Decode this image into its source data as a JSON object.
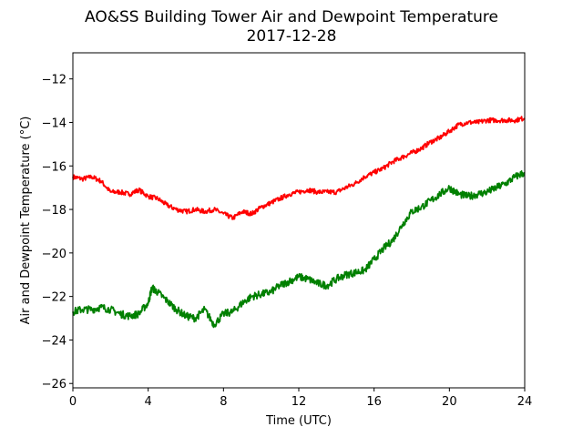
{
  "chart_data": {
    "type": "line",
    "title": "AO&SS Building Tower Air and Dewpoint Temperature",
    "subtitle": "2017-12-28",
    "xlabel": "Time (UTC)",
    "ylabel": "Air and Dewpoint Temperature (°C)",
    "xlim": [
      0,
      24
    ],
    "ylim": [
      -26.2,
      -10.8
    ],
    "xticks": [
      0,
      4,
      8,
      12,
      16,
      20,
      24
    ],
    "yticks": [
      -26,
      -24,
      -22,
      -20,
      -18,
      -16,
      -14,
      -12
    ],
    "grid": false,
    "series": [
      {
        "color": "#ff0000",
        "x": [
          0,
          0.5,
          1,
          1.5,
          2,
          2.5,
          3,
          3.5,
          4,
          4.5,
          5,
          5.5,
          6,
          6.5,
          7,
          7.5,
          8,
          8.5,
          9,
          9.5,
          10,
          10.5,
          11,
          11.5,
          12,
          12.5,
          13,
          13.5,
          14,
          14.5,
          15,
          15.5,
          16,
          16.5,
          17,
          17.5,
          18,
          18.5,
          19,
          19.5,
          20,
          20.5,
          21,
          21.5,
          22,
          22.5,
          23,
          23.5,
          24
        ],
        "y": [
          -16.5,
          -16.6,
          -16.5,
          -16.7,
          -17.2,
          -17.2,
          -17.3,
          -17.1,
          -17.4,
          -17.5,
          -17.8,
          -18.0,
          -18.1,
          -18.0,
          -18.1,
          -18.0,
          -18.2,
          -18.4,
          -18.1,
          -18.2,
          -17.9,
          -17.7,
          -17.5,
          -17.3,
          -17.2,
          -17.1,
          -17.2,
          -17.2,
          -17.2,
          -17.0,
          -16.8,
          -16.5,
          -16.3,
          -16.1,
          -15.8,
          -15.6,
          -15.4,
          -15.2,
          -14.9,
          -14.7,
          -14.4,
          -14.1,
          -14.0,
          -14.0,
          -13.9,
          -13.9,
          -13.9,
          -13.9,
          -13.8
        ]
      },
      {
        "color": "#008000",
        "x": [
          0,
          0.5,
          1,
          1.5,
          2,
          2.5,
          3,
          3.5,
          4,
          4.2,
          4.5,
          5,
          5.5,
          6,
          6.5,
          7,
          7.5,
          8,
          8.5,
          9,
          9.5,
          10,
          10.5,
          11,
          11.5,
          12,
          12.5,
          13,
          13.5,
          14,
          14.5,
          15,
          15.5,
          16,
          16.5,
          17,
          17.5,
          18,
          18.5,
          19,
          19.5,
          20,
          20.5,
          21,
          21.5,
          22,
          22.5,
          23,
          23.5,
          24
        ],
        "y": [
          -22.7,
          -22.6,
          -22.6,
          -22.5,
          -22.6,
          -22.8,
          -22.9,
          -22.8,
          -22.3,
          -21.6,
          -21.8,
          -22.2,
          -22.6,
          -22.9,
          -23.0,
          -22.6,
          -23.3,
          -22.8,
          -22.7,
          -22.3,
          -22.0,
          -21.9,
          -21.8,
          -21.5,
          -21.3,
          -21.1,
          -21.2,
          -21.4,
          -21.5,
          -21.2,
          -21.0,
          -20.9,
          -20.8,
          -20.3,
          -19.8,
          -19.4,
          -18.7,
          -18.1,
          -17.9,
          -17.6,
          -17.3,
          -17.0,
          -17.3,
          -17.4,
          -17.3,
          -17.2,
          -17.0,
          -16.8,
          -16.5,
          -16.3
        ]
      }
    ]
  }
}
